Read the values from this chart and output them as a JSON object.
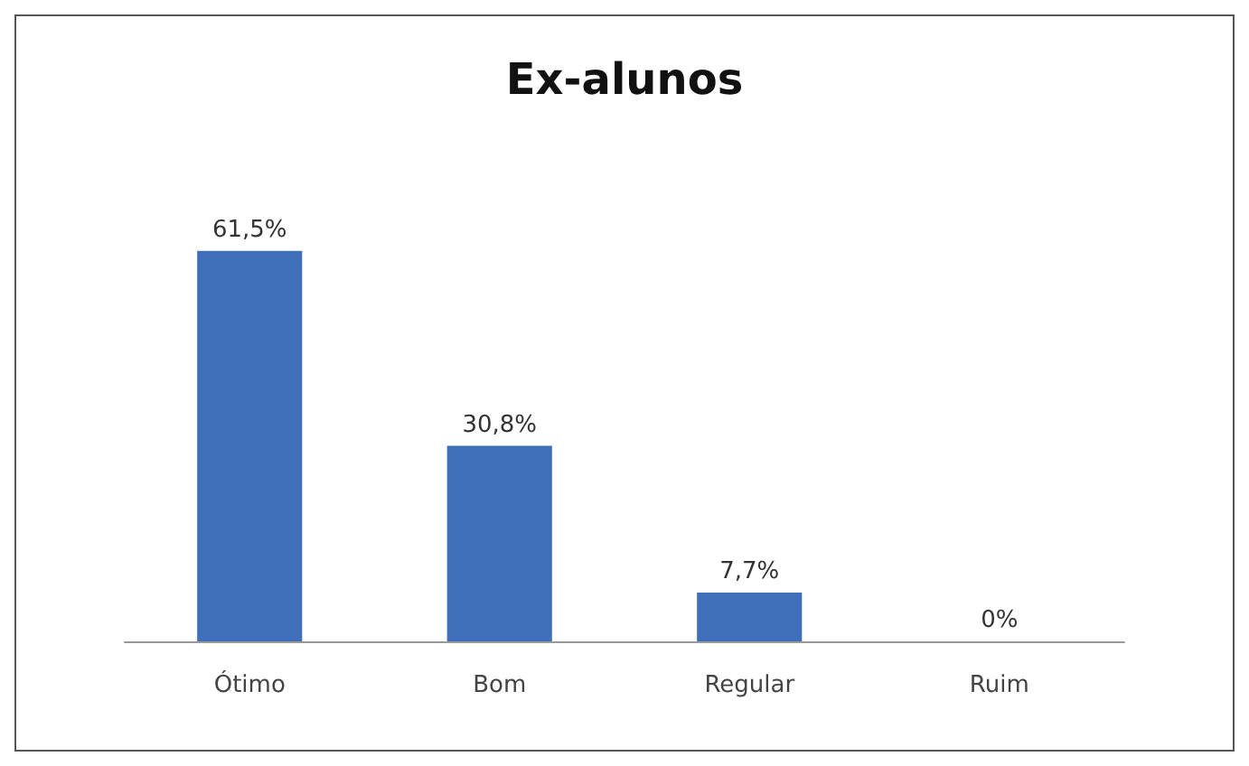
{
  "chart_data": {
    "type": "bar",
    "title": "Ex-alunos",
    "categories": [
      "Ótimo",
      "Bom",
      "Regular",
      "Ruim"
    ],
    "values": [
      61.5,
      30.8,
      7.7,
      0
    ],
    "value_labels": [
      "61,5%",
      "30,8%",
      "7,7%",
      "0%"
    ],
    "color": "#3f6fb8"
  }
}
